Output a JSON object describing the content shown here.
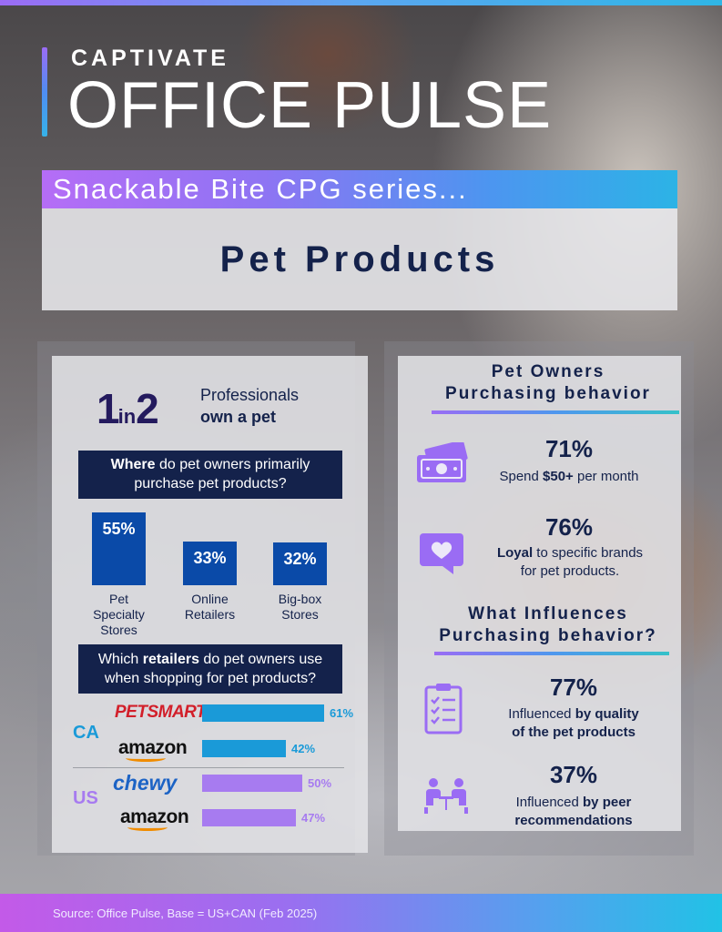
{
  "header": {
    "brand": "CAPTIVATE",
    "title": "OFFICE PULSE",
    "series": "Snackable Bite CPG series...",
    "topic": "Pet Products"
  },
  "left": {
    "ratio_one": "1",
    "ratio_in": "in",
    "ratio_two": "2",
    "ratio_line1": "Professionals",
    "ratio_line2": "own a pet",
    "q1_bold": "Where",
    "q1_rest": " do pet owners primarily",
    "q1_line2": "purchase pet products?",
    "channels": [
      {
        "value": "55%",
        "pct": 55,
        "label": [
          "Pet",
          "Specialty",
          "Stores"
        ]
      },
      {
        "value": "33%",
        "pct": 33,
        "label": [
          "Online",
          "Retailers"
        ]
      },
      {
        "value": "32%",
        "pct": 32,
        "label": [
          "Big-box",
          "Stores"
        ]
      }
    ],
    "q2_pre": "Which ",
    "q2_bold": "retailers",
    "q2_rest": " do pet owners use",
    "q2_line2": "when shopping for pet products?",
    "retailers": {
      "ca_label": "CA",
      "us_label": "US",
      "ca": [
        {
          "logo": "PETSMART",
          "value": "61%",
          "pct": 61,
          "color": "#1a9ad8"
        },
        {
          "logo": "amazon",
          "value": "42%",
          "pct": 42,
          "color": "#1a9ad8"
        }
      ],
      "us": [
        {
          "logo": "chewy",
          "value": "50%",
          "pct": 50,
          "color": "#a77bf0"
        },
        {
          "logo": "amazon",
          "value": "47%",
          "pct": 47,
          "color": "#a77bf0"
        }
      ],
      "ca_color": "#1a9ad8",
      "us_color": "#a77bf0"
    }
  },
  "right": {
    "h1_line1": "Pet Owners",
    "h1_line2": "Purchasing behavior",
    "s1_value": "71%",
    "s1_pre": "Spend ",
    "s1_bold": "$50+",
    "s1_rest": " per month",
    "s2_value": "76%",
    "s2_bold": "Loyal",
    "s2_rest": " to specific brands",
    "s2_line2": "for pet products.",
    "h2_line1": "What Influences",
    "h2_line2": "Purchasing behavior?",
    "s3_value": "77%",
    "s3_pre": "Influenced ",
    "s3_bold": "by quality",
    "s3_line2": "of the pet products",
    "s4_value": "37%",
    "s4_pre": "Influenced ",
    "s4_bold": "by peer",
    "s4_line2": "recommendations",
    "icons": [
      "money-icon",
      "heart-speech-bubble-icon",
      "checklist-clipboard-icon",
      "people-meeting-icon"
    ]
  },
  "footer": {
    "source": "Source: Office Pulse, Base = US+CAN (Feb 2025)"
  }
}
